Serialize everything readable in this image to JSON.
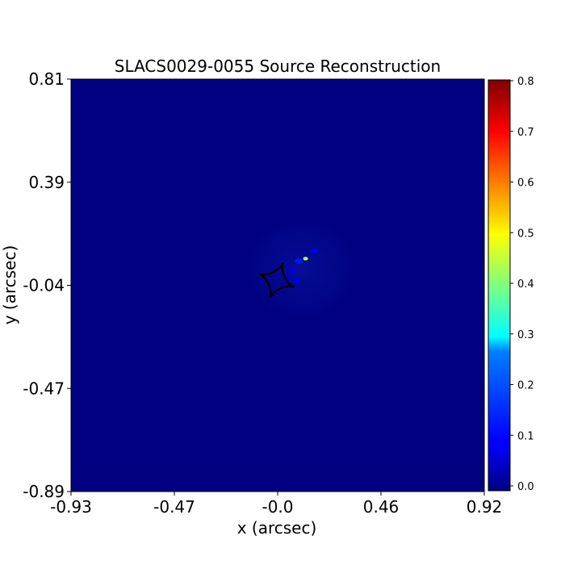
{
  "chart_data": {
    "type": "heatmap",
    "title": "SLACS0029-0055 Source Reconstruction",
    "xlabel": "x (arcsec)",
    "ylabel": "y (arcsec)",
    "xlim": [
      -0.93,
      0.92
    ],
    "ylim": [
      -0.89,
      0.81
    ],
    "x_ticks": [
      "-0.93",
      "-0.47",
      "-0.0",
      "0.46",
      "0.92"
    ],
    "y_ticks": [
      "0.81",
      "0.39",
      "-0.04",
      "-0.47",
      "-0.89"
    ],
    "colormap": "jet",
    "colorbar": {
      "range": [
        0.0,
        0.8
      ],
      "ticks": [
        "0.0",
        "0.1",
        "0.2",
        "0.3",
        "0.4",
        "0.5",
        "0.6",
        "0.7",
        "0.8"
      ]
    },
    "background_level": 0.0,
    "source_features": [
      {
        "x": 0.12,
        "y": 0.07,
        "value": 0.45
      },
      {
        "x": 0.09,
        "y": 0.06,
        "value": 0.12
      },
      {
        "x": 0.16,
        "y": 0.1,
        "value": 0.1
      },
      {
        "x": 0.06,
        "y": 0.02,
        "value": 0.08
      },
      {
        "x": 0.08,
        "y": -0.02,
        "value": 0.08
      },
      {
        "x": 0.04,
        "y": -0.01,
        "value": 0.06
      }
    ],
    "caustic": {
      "center": [
        -0.01,
        -0.02
      ],
      "radius": 0.08,
      "rotation_deg": 20,
      "color": "#000000"
    }
  }
}
